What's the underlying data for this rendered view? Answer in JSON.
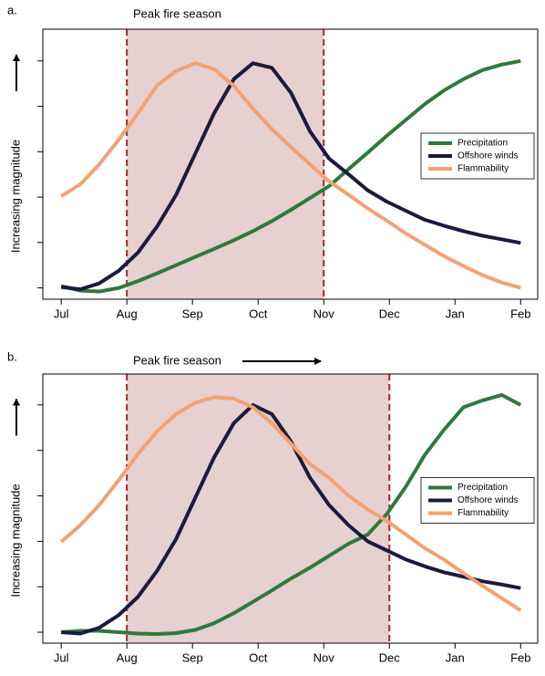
{
  "chart_data": [
    {
      "type": "line",
      "panel_label": "a.",
      "annotation": "Peak fire season",
      "y_label": "Increasing magnitude",
      "x": [
        0,
        0.29,
        0.58,
        0.88,
        1.17,
        1.46,
        1.75,
        2.04,
        2.33,
        2.63,
        2.92,
        3.21,
        3.5,
        3.79,
        4.08,
        4.38,
        4.67,
        4.96,
        5.25,
        5.54,
        5.83,
        6.13,
        6.42,
        6.71,
        7
      ],
      "xlim": [
        -0.28,
        7.26
      ],
      "xticks": [
        {
          "value": 0,
          "label": "Jul"
        },
        {
          "value": 1,
          "label": "Aug"
        },
        {
          "value": 2,
          "label": "Sep"
        },
        {
          "value": 3,
          "label": "Oct"
        },
        {
          "value": 4,
          "label": "Nov"
        },
        {
          "value": 5,
          "label": "Dec"
        },
        {
          "value": 6,
          "label": "Jan"
        },
        {
          "value": 7,
          "label": "Feb"
        }
      ],
      "ylim": [
        -0.25,
        5.7
      ],
      "yticks": [
        0,
        1,
        2,
        3,
        4,
        5
      ],
      "shaded_span": [
        1,
        4
      ],
      "legend": "right",
      "series": [
        {
          "name": "Precipitation",
          "color": "#2e7a3c",
          "values": [
            0.04,
            -0.06,
            -0.08,
            0,
            0.15,
            0.32,
            0.5,
            0.68,
            0.86,
            1.05,
            1.25,
            1.47,
            1.72,
            1.98,
            2.24,
            2.62,
            2.98,
            3.35,
            3.7,
            4.05,
            4.35,
            4.6,
            4.8,
            4.92,
            5
          ]
        },
        {
          "name": "Offshore winds",
          "color": "#1b1a3f",
          "values": [
            0.02,
            -0.03,
            0.1,
            0.38,
            0.78,
            1.35,
            2.05,
            2.95,
            3.85,
            4.6,
            4.95,
            4.85,
            4.3,
            3.45,
            2.85,
            2.5,
            2.15,
            1.9,
            1.7,
            1.5,
            1.37,
            1.25,
            1.15,
            1.07,
            0.99
          ]
        },
        {
          "name": "Flammability",
          "color": "#f2a273",
          "values": [
            2.02,
            2.28,
            2.72,
            3.27,
            3.85,
            4.46,
            4.78,
            4.95,
            4.82,
            4.45,
            3.95,
            3.5,
            3.1,
            2.72,
            2.35,
            2.05,
            1.75,
            1.48,
            1.2,
            0.95,
            0.7,
            0.48,
            0.28,
            0.12,
            0
          ]
        }
      ]
    },
    {
      "type": "line",
      "panel_label": "b.",
      "annotation": "Peak fire season",
      "y_label": "Increasing magnitude",
      "x": [
        0,
        0.29,
        0.58,
        0.88,
        1.17,
        1.46,
        1.75,
        2.04,
        2.33,
        2.63,
        2.92,
        3.21,
        3.5,
        3.79,
        4.08,
        4.38,
        4.67,
        4.96,
        5.25,
        5.54,
        5.83,
        6.13,
        6.42,
        6.71,
        7
      ],
      "xlim": [
        -0.28,
        7.26
      ],
      "xticks": [
        {
          "value": 0,
          "label": "Jul"
        },
        {
          "value": 1,
          "label": "Aug"
        },
        {
          "value": 2,
          "label": "Sep"
        },
        {
          "value": 3,
          "label": "Oct"
        },
        {
          "value": 4,
          "label": "Nov"
        },
        {
          "value": 5,
          "label": "Dec"
        },
        {
          "value": 6,
          "label": "Jan"
        },
        {
          "value": 7,
          "label": "Feb"
        }
      ],
      "ylim": [
        -0.24,
        5.68
      ],
      "yticks": [
        0,
        1,
        2,
        3,
        4,
        5
      ],
      "shaded_span": [
        1,
        5
      ],
      "legend": "right",
      "series": [
        {
          "name": "Precipitation",
          "color": "#2e7a3c",
          "values": [
            0,
            0.03,
            0.03,
            0,
            -0.03,
            -0.04,
            -0.02,
            0.05,
            0.2,
            0.42,
            0.67,
            0.92,
            1.18,
            1.42,
            1.68,
            1.95,
            2.15,
            2.6,
            3.2,
            3.9,
            4.45,
            4.95,
            5.1,
            5.22,
            5
          ]
        },
        {
          "name": "Offshore winds",
          "color": "#1b1a3f",
          "values": [
            0,
            -0.03,
            0.1,
            0.38,
            0.78,
            1.35,
            2.05,
            2.95,
            3.85,
            4.6,
            5,
            4.8,
            4.2,
            3.4,
            2.8,
            2.35,
            2,
            1.8,
            1.6,
            1.45,
            1.32,
            1.22,
            1.12,
            1.05,
            0.97
          ]
        },
        {
          "name": "Flammability",
          "color": "#f2a273",
          "values": [
            1.99,
            2.35,
            2.8,
            3.35,
            3.92,
            4.42,
            4.8,
            5.05,
            5.17,
            5.14,
            4.95,
            4.6,
            4.15,
            3.7,
            3.4,
            3,
            2.7,
            2.45,
            2.15,
            1.85,
            1.6,
            1.3,
            1.02,
            0.75,
            0.48
          ]
        }
      ]
    }
  ]
}
